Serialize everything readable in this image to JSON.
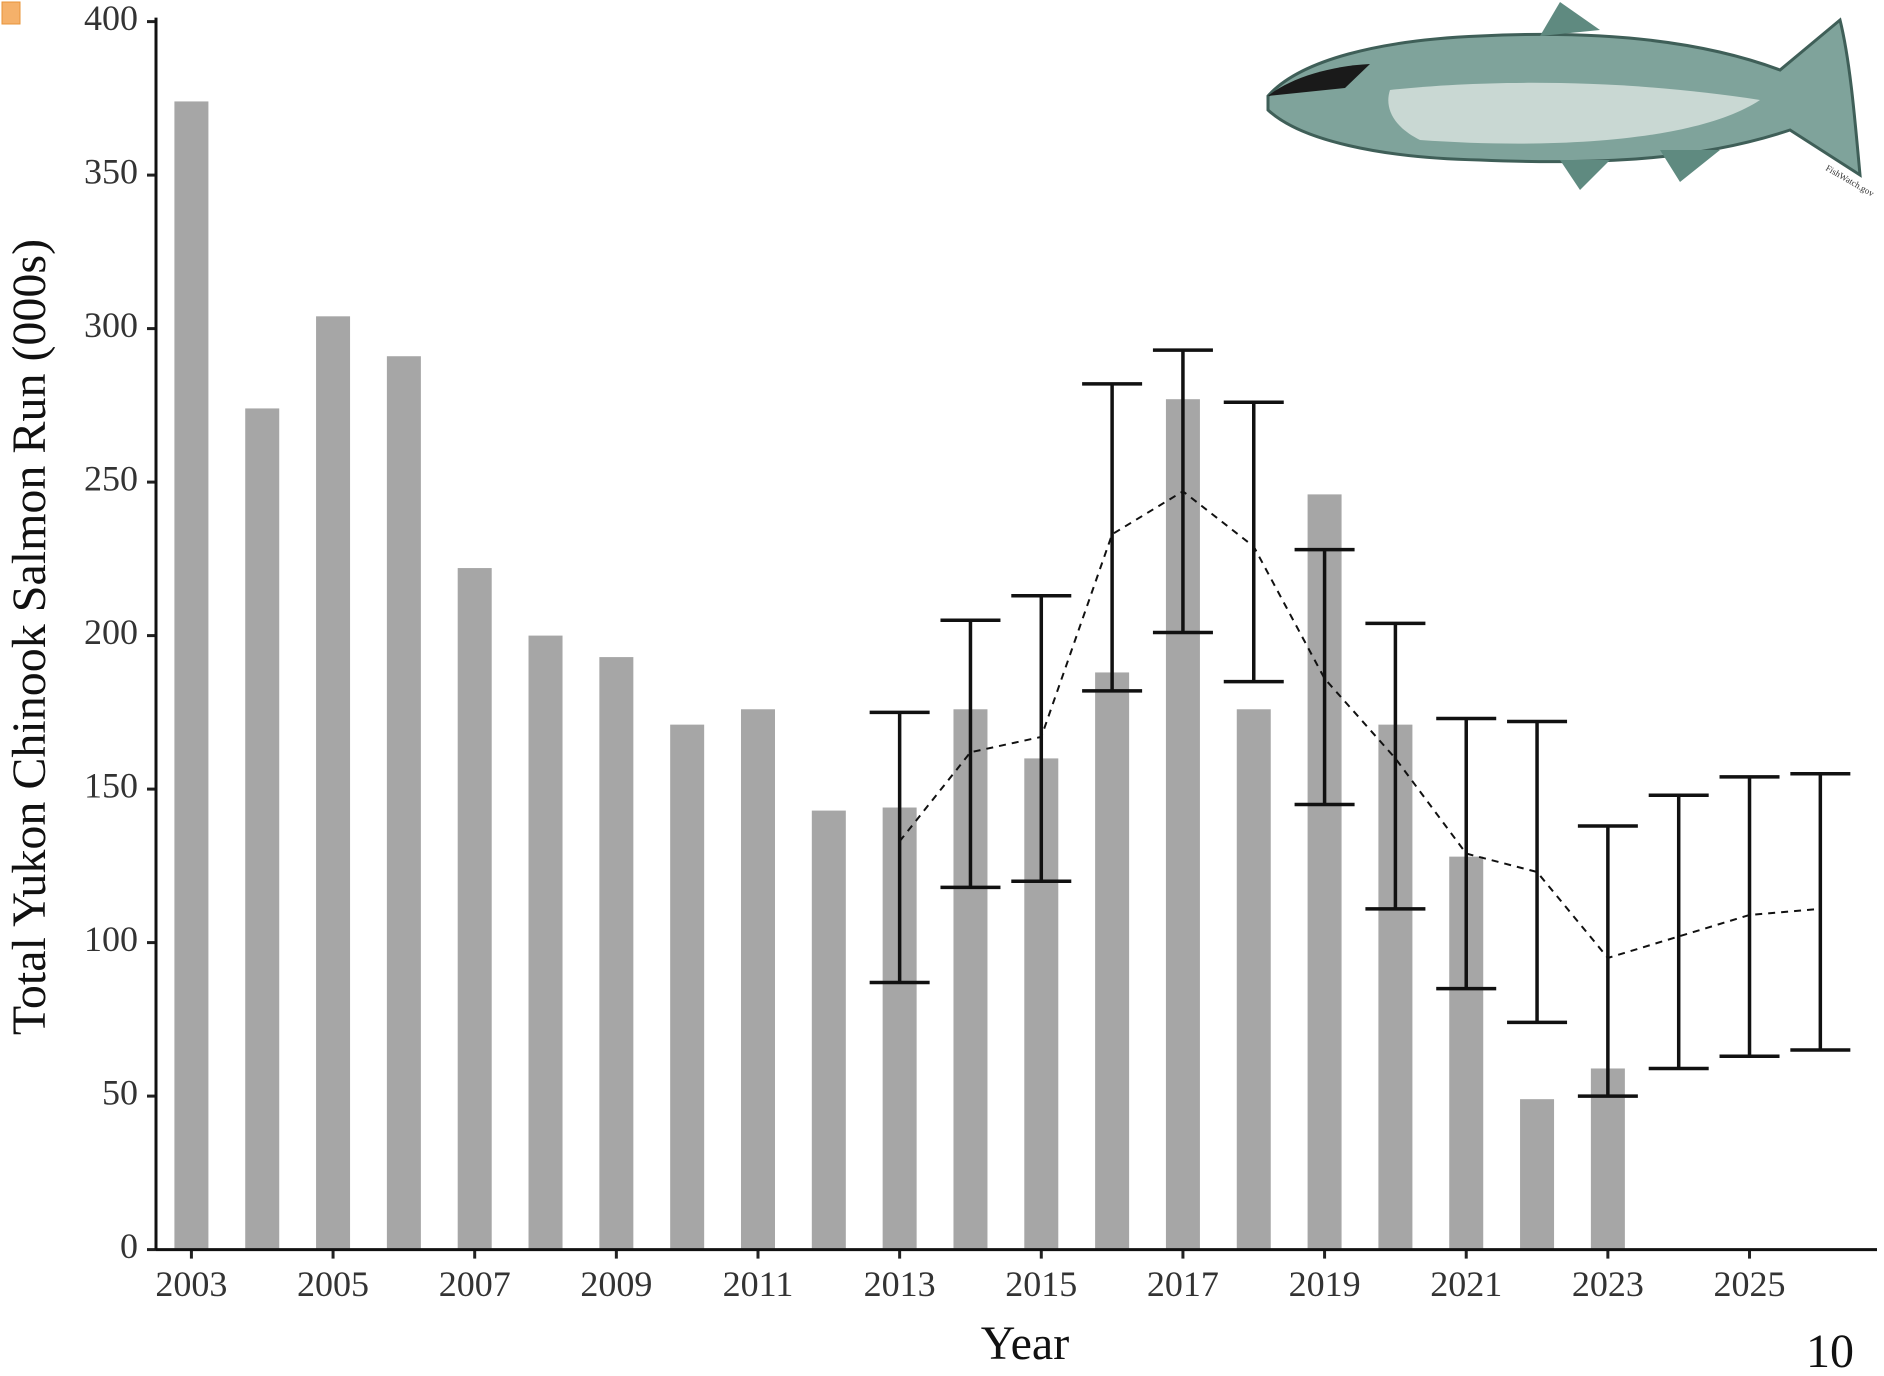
{
  "chart_data": {
    "type": "bar",
    "y_label": "Total Yukon Chinook Salmon Run (000s)",
    "x_label": "Year",
    "image_credit": "FishWatch.gov",
    "page_number": "10",
    "x": [
      2003,
      2004,
      2005,
      2006,
      2007,
      2008,
      2009,
      2010,
      2011,
      2012,
      2013,
      2014,
      2015,
      2016,
      2017,
      2018,
      2019,
      2020,
      2021,
      2022,
      2023,
      2024,
      2025,
      2026
    ],
    "series": [
      {
        "type": "bar",
        "color": "#a6a6a6",
        "values": [
          374,
          274,
          304,
          291,
          222,
          200,
          193,
          171,
          176,
          143,
          144,
          176,
          160,
          188,
          277,
          176,
          246,
          171,
          128,
          49,
          59,
          null,
          null,
          null
        ]
      },
      {
        "type": "line",
        "color": "#111111",
        "values": [
          null,
          null,
          null,
          null,
          null,
          null,
          null,
          null,
          null,
          null,
          133,
          162,
          167,
          233,
          247,
          229,
          186,
          160,
          129,
          123,
          95,
          102,
          109,
          111
        ],
        "lower": [
          null,
          null,
          null,
          null,
          null,
          null,
          null,
          null,
          null,
          null,
          87,
          118,
          120,
          182,
          201,
          185,
          145,
          111,
          85,
          74,
          50,
          59,
          63,
          65
        ],
        "upper": [
          null,
          null,
          null,
          null,
          null,
          null,
          null,
          null,
          null,
          null,
          175,
          205,
          213,
          282,
          293,
          276,
          228,
          204,
          173,
          172,
          138,
          148,
          154,
          155
        ]
      }
    ],
    "xlim": [
      2002.5,
      2026.8
    ],
    "xticks": [
      2003,
      2005,
      2007,
      2009,
      2011,
      2013,
      2015,
      2017,
      2019,
      2021,
      2023,
      2025
    ],
    "ylim": [
      0,
      400
    ],
    "yticks": [
      0,
      50,
      100,
      150,
      200,
      250,
      300,
      350,
      400
    ],
    "grid": false
  }
}
